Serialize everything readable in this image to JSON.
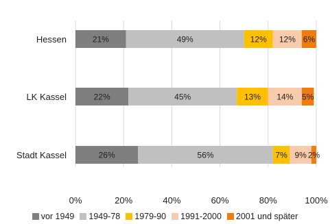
{
  "chart_data": {
    "type": "bar",
    "orientation": "horizontal",
    "stacked": true,
    "percent": true,
    "title": "",
    "xlabel": "",
    "ylabel": "",
    "xlim": [
      0,
      100
    ],
    "x_ticks": [
      "0%",
      "20%",
      "40%",
      "60%",
      "80%",
      "100%"
    ],
    "x_tick_values": [
      0,
      20,
      40,
      60,
      80,
      100
    ],
    "grid": true,
    "legend_position": "bottom",
    "categories": [
      "Hessen",
      "LK Kassel",
      "Stadt Kassel"
    ],
    "series": [
      {
        "name": "vor 1949",
        "color": "#7f7f7f",
        "values": [
          21,
          22,
          26
        ],
        "labels": [
          "21%",
          "22%",
          "26%"
        ]
      },
      {
        "name": "1949-78",
        "color": "#c0c0c0",
        "values": [
          49,
          45,
          56
        ],
        "labels": [
          "49%",
          "45%",
          "56%"
        ]
      },
      {
        "name": "1979-90",
        "color": "#ffc000",
        "values": [
          12,
          13,
          7
        ],
        "labels": [
          "12%",
          "13%",
          "7%"
        ]
      },
      {
        "name": "1991-2000",
        "color": "#f8cbad",
        "values": [
          12,
          14,
          9
        ],
        "labels": [
          "12%",
          "14%",
          "9%"
        ]
      },
      {
        "name": "2001 und später",
        "color": "#f07c0f",
        "values": [
          6,
          5,
          2
        ],
        "labels": [
          "6%",
          "5%",
          "2%"
        ]
      }
    ]
  }
}
